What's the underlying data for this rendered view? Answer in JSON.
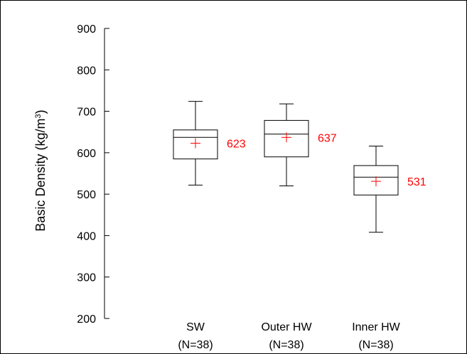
{
  "chart_data": {
    "type": "box",
    "ylabel": "Basic Density (kg/m",
    "ylabel_sup": "3",
    "ylabel_suffix": ")",
    "ylim": [
      200,
      900
    ],
    "yticks": [
      200,
      300,
      400,
      500,
      600,
      700,
      800,
      900
    ],
    "categories": [
      {
        "label": "SW",
        "n_label": "(N=38)"
      },
      {
        "label": "Outer HW",
        "n_label": "(N=38)"
      },
      {
        "label": "Inner HW",
        "n_label": "(N=38)"
      }
    ],
    "boxes": [
      {
        "whisker_low": 522,
        "q1": 585,
        "median": 637,
        "q3": 655,
        "whisker_high": 724,
        "mean": 623,
        "mean_label": "623"
      },
      {
        "whisker_low": 520,
        "q1": 590,
        "median": 645,
        "q3": 678,
        "whisker_high": 718,
        "mean": 637,
        "mean_label": "637"
      },
      {
        "whisker_low": 408,
        "q1": 498,
        "median": 541,
        "q3": 569,
        "whisker_high": 616,
        "mean": 531,
        "mean_label": "531"
      }
    ],
    "colors": {
      "box": "#000000",
      "mean_marker": "#ff0000",
      "mean_text": "#ff0000"
    }
  }
}
